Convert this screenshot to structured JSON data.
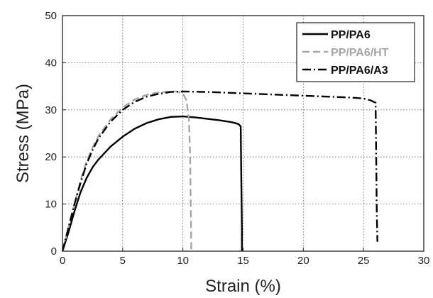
{
  "chart_data": {
    "type": "line",
    "xlabel": "Strain (%)",
    "ylabel": "Stress (MPa)",
    "xlim": [
      0,
      30
    ],
    "ylim": [
      0,
      50
    ],
    "xticks": [
      0,
      5,
      10,
      15,
      20,
      25,
      30
    ],
    "yticks": [
      0,
      10,
      20,
      30,
      40,
      50
    ],
    "grid": true,
    "legend_position": "top-right",
    "series": [
      {
        "name": "PP/PA6",
        "color": "#000000",
        "style": "solid",
        "x": [
          0,
          0.5,
          1.0,
          1.5,
          2.0,
          2.5,
          3.0,
          4.0,
          5.0,
          6.0,
          7.0,
          8.0,
          9.0,
          10.0,
          11.0,
          12.0,
          13.0,
          14.0,
          14.6,
          14.8,
          14.85,
          14.9,
          14.9
        ],
        "y": [
          0,
          4,
          8.5,
          12.5,
          15.5,
          17.8,
          19.5,
          22.2,
          24.3,
          26.0,
          27.2,
          28.0,
          28.5,
          28.6,
          28.4,
          28.1,
          27.8,
          27.4,
          27.0,
          26.5,
          15,
          5,
          0
        ]
      },
      {
        "name": "PP/PA6/HT",
        "color": "#a6a6a6",
        "style": "dashed",
        "x": [
          0,
          0.5,
          1.0,
          1.5,
          2.0,
          2.5,
          3.0,
          4.0,
          5.0,
          6.0,
          7.0,
          8.0,
          9.0,
          9.5,
          10.0,
          10.3,
          10.5,
          10.6,
          10.65,
          10.7
        ],
        "y": [
          0,
          5,
          10,
          15,
          19,
          22,
          24.5,
          28.0,
          30.5,
          32.2,
          33.2,
          33.7,
          33.9,
          33.9,
          33.5,
          32.0,
          28.0,
          20,
          10,
          0
        ]
      },
      {
        "name": "PP/PA6/A3",
        "color": "#000000",
        "style": "dashdot",
        "x": [
          0,
          0.5,
          1.0,
          1.5,
          2.0,
          2.5,
          3.0,
          4.0,
          5.0,
          6.0,
          7.0,
          8.0,
          9.0,
          10.0,
          12.0,
          14.0,
          16.0,
          18.0,
          20.0,
          22.0,
          24.0,
          25.0,
          25.6,
          26.0,
          26.05,
          26.1,
          26.15
        ],
        "y": [
          0,
          5,
          10,
          14.5,
          18.5,
          21.5,
          24.0,
          27.5,
          30.0,
          31.7,
          32.8,
          33.4,
          33.8,
          33.9,
          33.8,
          33.6,
          33.4,
          33.2,
          33.0,
          32.8,
          32.6,
          32.4,
          32.0,
          31.5,
          20,
          8,
          2
        ]
      }
    ]
  }
}
